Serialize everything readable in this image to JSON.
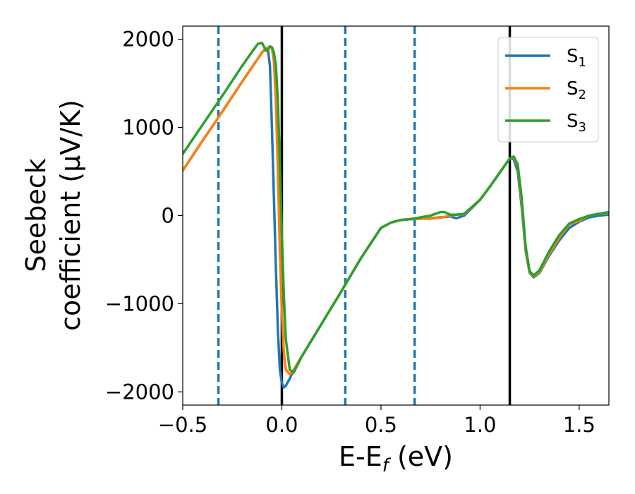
{
  "chart_data": {
    "type": "line",
    "title": "",
    "xlabel": "E-E",
    "xlabel_subscript": "f",
    "xlabel_unit": " (eV)",
    "ylabel": [
      "Seebeck",
      "coefficient  (μV/K)"
    ],
    "xlim": [
      -0.5,
      1.65
    ],
    "ylim": [
      -2150,
      2150
    ],
    "xticks": [
      -0.5,
      0.0,
      0.5,
      1.0,
      1.5
    ],
    "xtick_labels": [
      "−0.5",
      "0.0",
      "0.5",
      "1.0",
      "1.5"
    ],
    "yticks": [
      -2000,
      -1000,
      0,
      1000,
      2000
    ],
    "ytick_labels": [
      "−2000",
      "−1000",
      "0",
      "1000",
      "2000"
    ],
    "grid": false,
    "legend_position": "top-right",
    "vlines_solid": [
      0.0,
      1.15
    ],
    "vlines_dashed": [
      -0.32,
      0.32,
      0.67
    ],
    "vline_solid_color": "#000000",
    "vline_dashed_color": "#1f77b4",
    "series": [
      {
        "name": "S",
        "subscript": "1",
        "color": "#1f77b4",
        "x": [
          -0.5,
          -0.4,
          -0.3,
          -0.2,
          -0.1,
          -0.08,
          -0.07,
          -0.06,
          -0.05,
          -0.04,
          -0.03,
          -0.02,
          -0.01,
          0.0,
          0.01,
          0.02,
          0.04,
          0.06,
          0.1,
          0.2,
          0.3,
          0.4,
          0.5,
          0.55,
          0.6,
          0.65,
          0.7,
          0.75,
          0.8,
          0.85,
          0.88,
          0.92,
          1.0,
          1.05,
          1.1,
          1.15,
          1.17,
          1.19,
          1.21,
          1.23,
          1.25,
          1.27,
          1.3,
          1.35,
          1.4,
          1.45,
          1.5,
          1.55,
          1.6,
          1.65
        ],
        "y": [
          510,
          850,
          1180,
          1520,
          1850,
          1900,
          1880,
          1700,
          1000,
          200,
          -600,
          -1300,
          -1750,
          -1900,
          -1950,
          -1930,
          -1850,
          -1750,
          -1600,
          -1230,
          -860,
          -480,
          -140,
          -80,
          -50,
          -40,
          -35,
          -30,
          -20,
          -10,
          -30,
          0,
          180,
          330,
          490,
          650,
          640,
          500,
          100,
          -400,
          -650,
          -700,
          -650,
          -450,
          -280,
          -140,
          -70,
          -20,
          0,
          10
        ]
      },
      {
        "name": "S",
        "subscript": "2",
        "color": "#ff7f0e",
        "x": [
          -0.5,
          -0.4,
          -0.3,
          -0.2,
          -0.1,
          -0.08,
          -0.07,
          -0.06,
          -0.05,
          -0.04,
          -0.03,
          -0.02,
          -0.01,
          0.0,
          0.01,
          0.02,
          0.04,
          0.06,
          0.1,
          0.2,
          0.3,
          0.4,
          0.5,
          0.55,
          0.6,
          0.65,
          0.7,
          0.75,
          0.8,
          0.85,
          0.88,
          0.92,
          1.0,
          1.05,
          1.1,
          1.15,
          1.17,
          1.19,
          1.21,
          1.23,
          1.25,
          1.27,
          1.3,
          1.35,
          1.4,
          1.45,
          1.5,
          1.55,
          1.6,
          1.65
        ],
        "y": [
          510,
          850,
          1180,
          1520,
          1850,
          1900,
          1900,
          1920,
          1900,
          1750,
          1300,
          500,
          -400,
          -1100,
          -1550,
          -1750,
          -1800,
          -1750,
          -1600,
          -1230,
          -860,
          -480,
          -140,
          -80,
          -50,
          -40,
          -35,
          -35,
          -25,
          0,
          10,
          15,
          180,
          330,
          490,
          650,
          660,
          560,
          150,
          -380,
          -640,
          -690,
          -640,
          -430,
          -250,
          -100,
          -60,
          0,
          20,
          30
        ]
      },
      {
        "name": "S",
        "subscript": "3",
        "color": "#2ca02c",
        "x": [
          -0.5,
          -0.4,
          -0.3,
          -0.2,
          -0.15,
          -0.12,
          -0.1,
          -0.08,
          -0.07,
          -0.06,
          -0.05,
          -0.04,
          -0.03,
          -0.02,
          -0.01,
          0.0,
          0.01,
          0.02,
          0.04,
          0.06,
          0.1,
          0.2,
          0.3,
          0.4,
          0.5,
          0.55,
          0.6,
          0.65,
          0.7,
          0.75,
          0.8,
          0.82,
          0.85,
          0.88,
          0.92,
          1.0,
          1.05,
          1.1,
          1.15,
          1.17,
          1.19,
          1.21,
          1.23,
          1.25,
          1.27,
          1.3,
          1.35,
          1.4,
          1.45,
          1.5,
          1.55,
          1.6,
          1.65
        ],
        "y": [
          700,
          1030,
          1360,
          1700,
          1860,
          1950,
          1960,
          1870,
          1880,
          1920,
          1910,
          1850,
          1700,
          1300,
          600,
          -200,
          -900,
          -1400,
          -1750,
          -1780,
          -1600,
          -1230,
          -860,
          -480,
          -140,
          -80,
          -50,
          -40,
          -20,
          0,
          40,
          40,
          10,
          10,
          20,
          180,
          330,
          490,
          650,
          670,
          580,
          200,
          -350,
          -630,
          -680,
          -620,
          -400,
          -220,
          -90,
          -40,
          0,
          20,
          40
        ]
      }
    ]
  }
}
